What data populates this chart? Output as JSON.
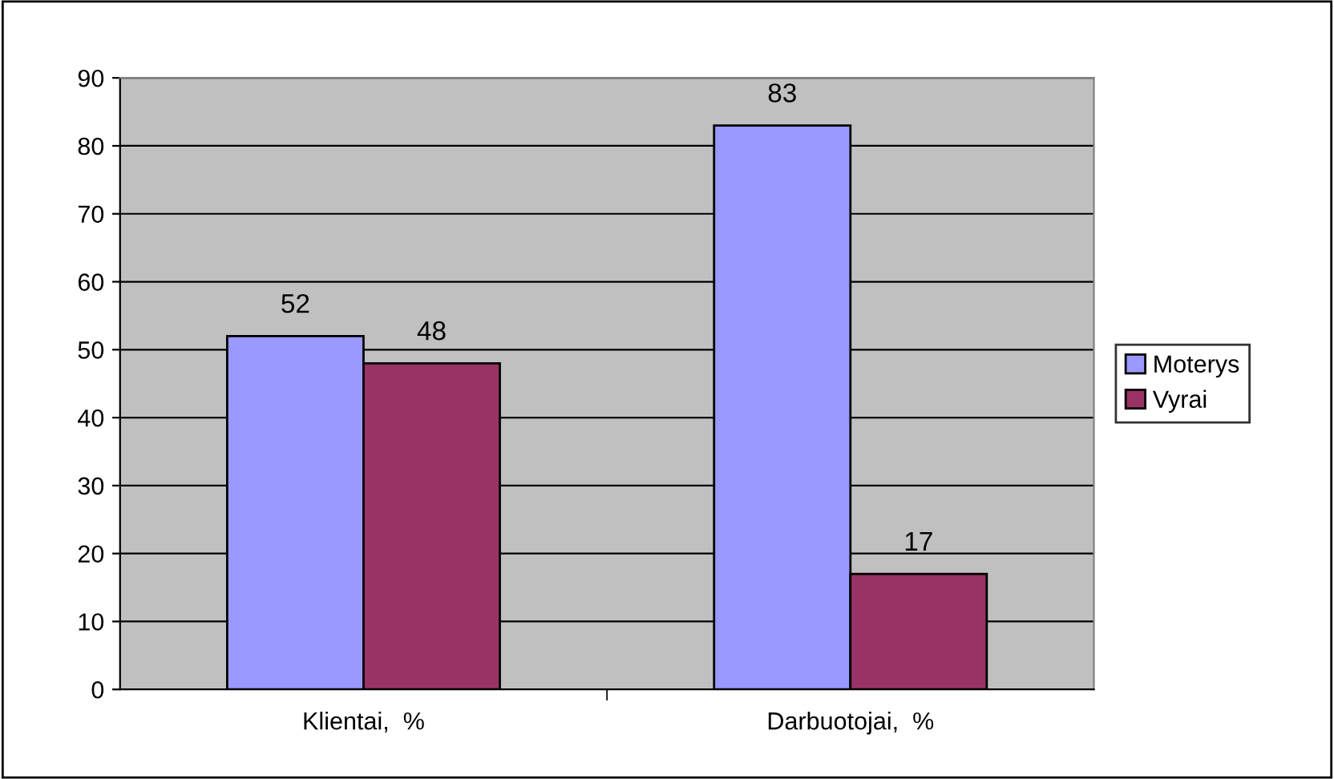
{
  "chart_data": {
    "type": "bar",
    "categories": [
      "Klientai,  %",
      "Darbuotojai,  %"
    ],
    "series": [
      {
        "name": "Moterys",
        "color": "#9999ff",
        "values": [
          52,
          83
        ]
      },
      {
        "name": "Vyrai",
        "color": "#993366",
        "values": [
          48,
          17
        ]
      }
    ],
    "ylim": [
      0,
      90
    ],
    "yticks": [
      0,
      10,
      20,
      30,
      40,
      50,
      60,
      70,
      80,
      90
    ],
    "grid": "y",
    "legend": "right",
    "data_labels": true
  }
}
